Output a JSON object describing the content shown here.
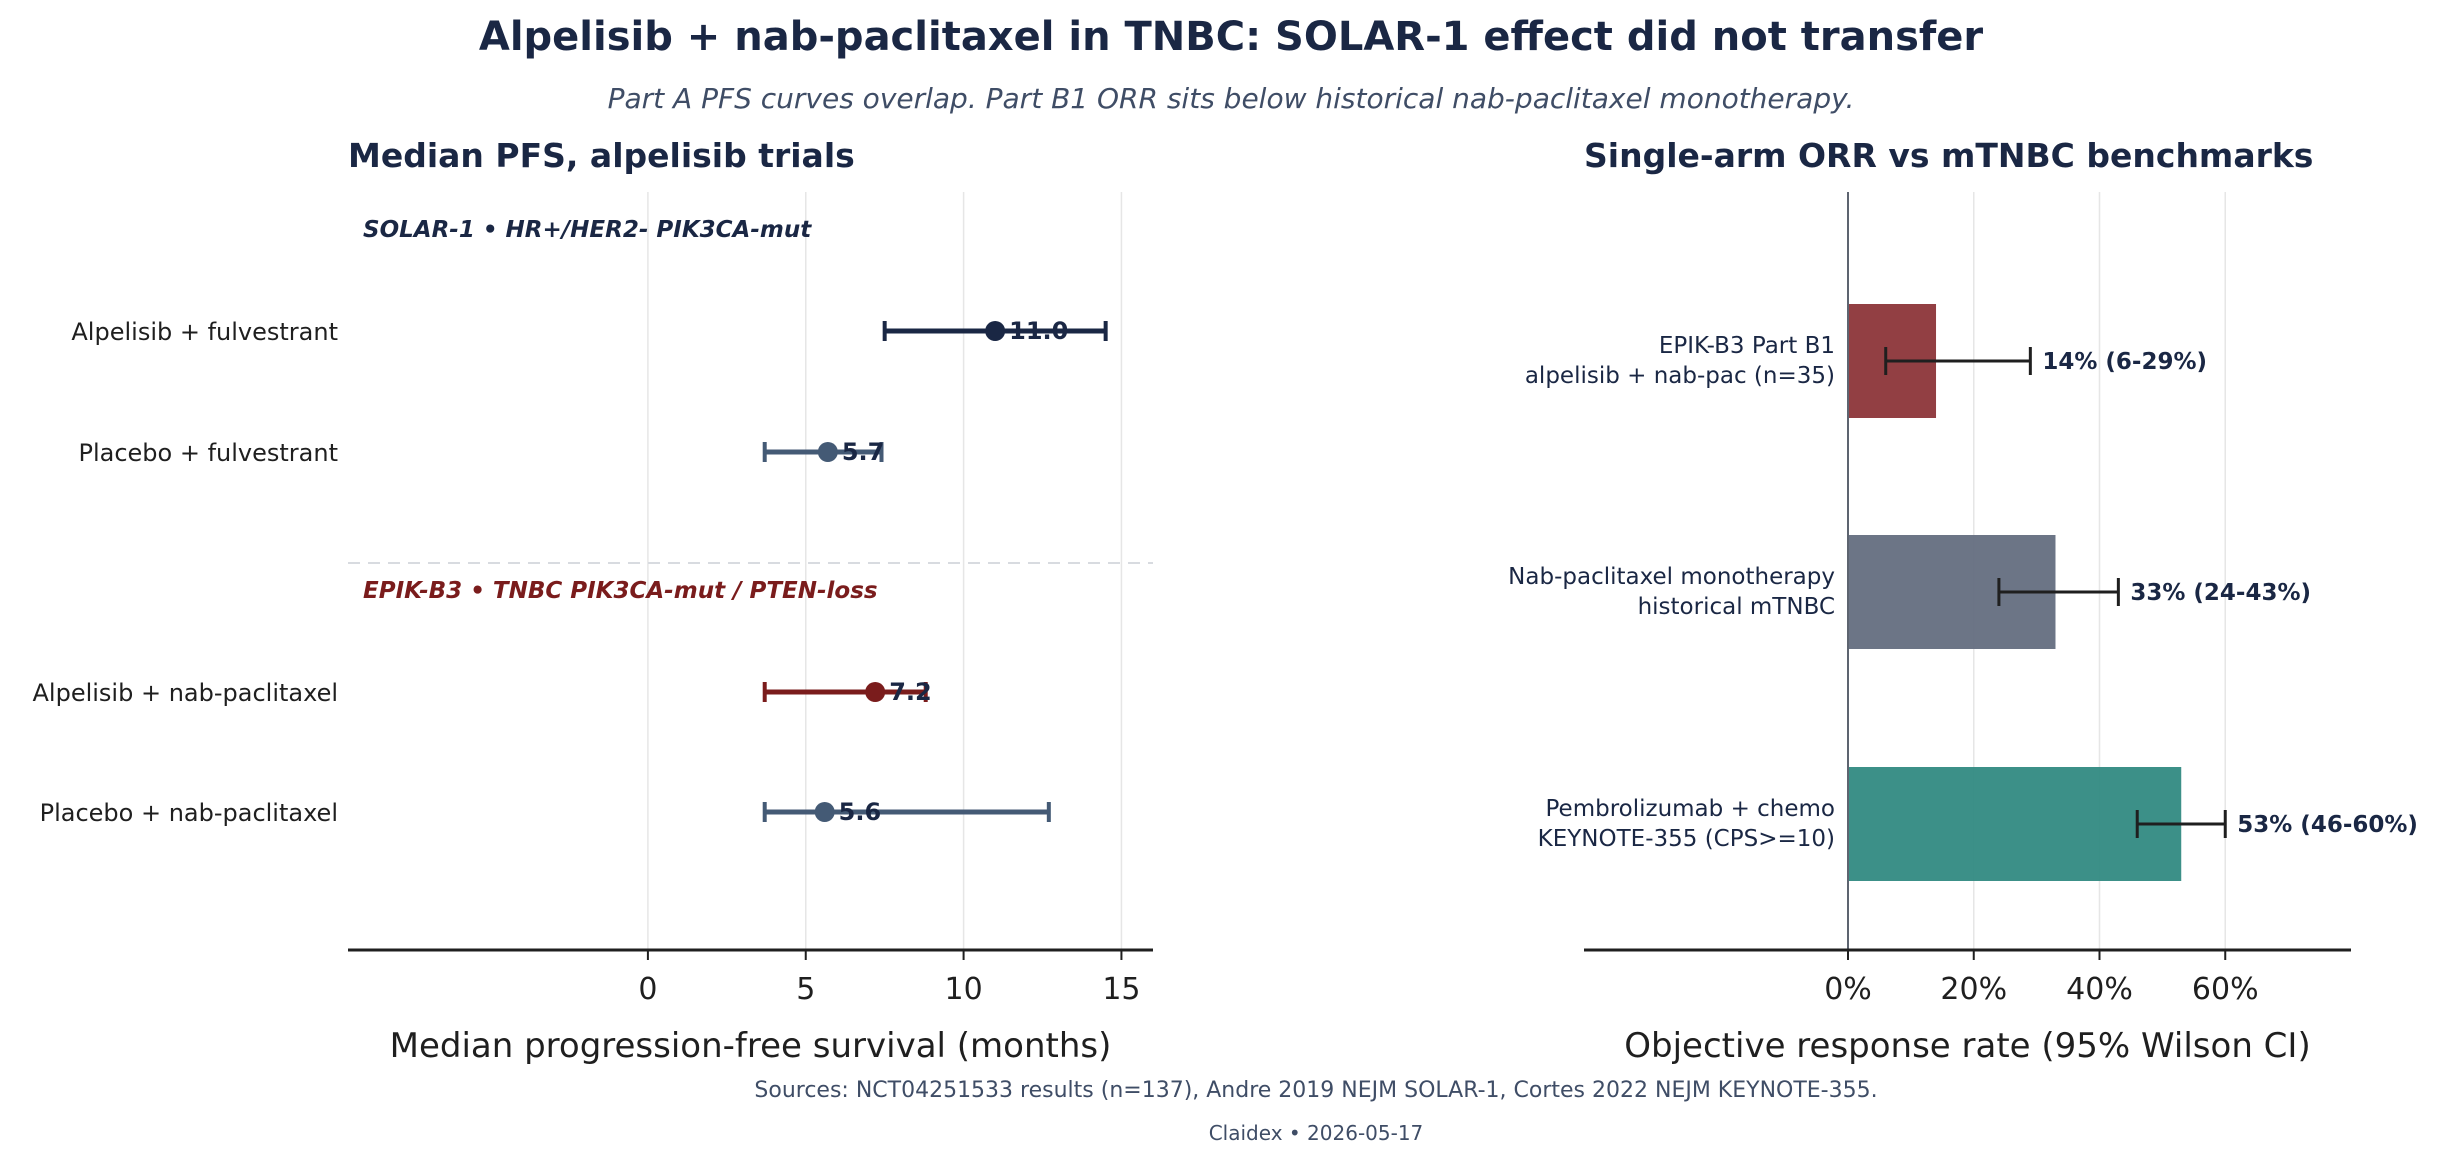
{
  "title": "Alpelisib + nab-paclitaxel in TNBC: SOLAR-1 effect did not transfer",
  "subtitle": "Part A PFS curves overlap. Part B1 ORR sits below historical nab-paclitaxel monotherapy.",
  "footer": {
    "sources": "Sources: NCT04251533 results (n=137), Andre 2019 NEJM SOLAR-1, Cortes 2022 NEJM KEYNOTE-355.",
    "credit": "Claidex • 2026-05-17"
  },
  "colors": {
    "navy": "#1a2744",
    "slate": "#445a75",
    "dark_red": "#7a1c1c",
    "bar_red": "#8c3539",
    "bar_gray": "#646e80",
    "bar_teal": "#318a82"
  },
  "chart_data": [
    {
      "type": "scatter",
      "title": "Median PFS, alpelisib trials",
      "xlabel": "Median progression-free survival (months)",
      "xlim": [
        -9.5,
        16
      ],
      "xticks": [
        0,
        5,
        10,
        15
      ],
      "xtick_labels": [
        "0",
        "5",
        "10",
        "15"
      ],
      "grid": "x",
      "groups": [
        {
          "label": "SOLAR-1  •  HR+/HER2-  PIK3CA-mut",
          "color": "#1a2744"
        },
        {
          "label": "EPIK-B3  •  TNBC  PIK3CA-mut / PTEN-loss",
          "color": "#7a1c1c"
        }
      ],
      "points": [
        {
          "category": "Alpelisib + fulvestrant",
          "median": 11.0,
          "ci_low": 7.5,
          "ci_high": 14.5,
          "label": "11.0",
          "color": "#1a2744"
        },
        {
          "category": "Placebo + fulvestrant",
          "median": 5.7,
          "ci_low": 3.7,
          "ci_high": 7.4,
          "label": "5.7",
          "color": "#445a75"
        },
        {
          "category": "Alpelisib + nab-paclitaxel",
          "median": 7.2,
          "ci_low": 3.7,
          "ci_high": 8.8,
          "label": "7.2",
          "color": "#7a1c1c"
        },
        {
          "category": "Placebo + nab-paclitaxel",
          "median": 5.6,
          "ci_low": 3.7,
          "ci_high": 12.7,
          "label": "5.6",
          "color": "#445a75"
        }
      ]
    },
    {
      "type": "bar",
      "orientation": "horizontal",
      "title": "Single-arm ORR vs mTNBC benchmarks",
      "xlabel": "Objective response rate (95% Wilson CI)",
      "xlim": [
        -42,
        80
      ],
      "xticks": [
        0,
        20,
        40,
        60
      ],
      "xtick_labels": [
        "0%",
        "20%",
        "40%",
        "60%"
      ],
      "grid": "x",
      "bars": [
        {
          "label_line1": "EPIK-B3 Part B1",
          "label_line2": "alpelisib + nab-pac (n=35)",
          "value": 14,
          "ci_low": 6,
          "ci_high": 29,
          "data_label": "14%  (6-29%)",
          "color": "#8c3539"
        },
        {
          "label_line1": "Nab-paclitaxel monotherapy",
          "label_line2": "historical mTNBC",
          "value": 33,
          "ci_low": 24,
          "ci_high": 43,
          "data_label": "33%  (24-43%)",
          "color": "#646e80"
        },
        {
          "label_line1": "Pembrolizumab + chemo",
          "label_line2": "KEYNOTE-355 (CPS>=10)",
          "value": 53,
          "ci_low": 46,
          "ci_high": 60,
          "data_label": "53%  (46-60%)",
          "color": "#318a82"
        }
      ]
    }
  ]
}
